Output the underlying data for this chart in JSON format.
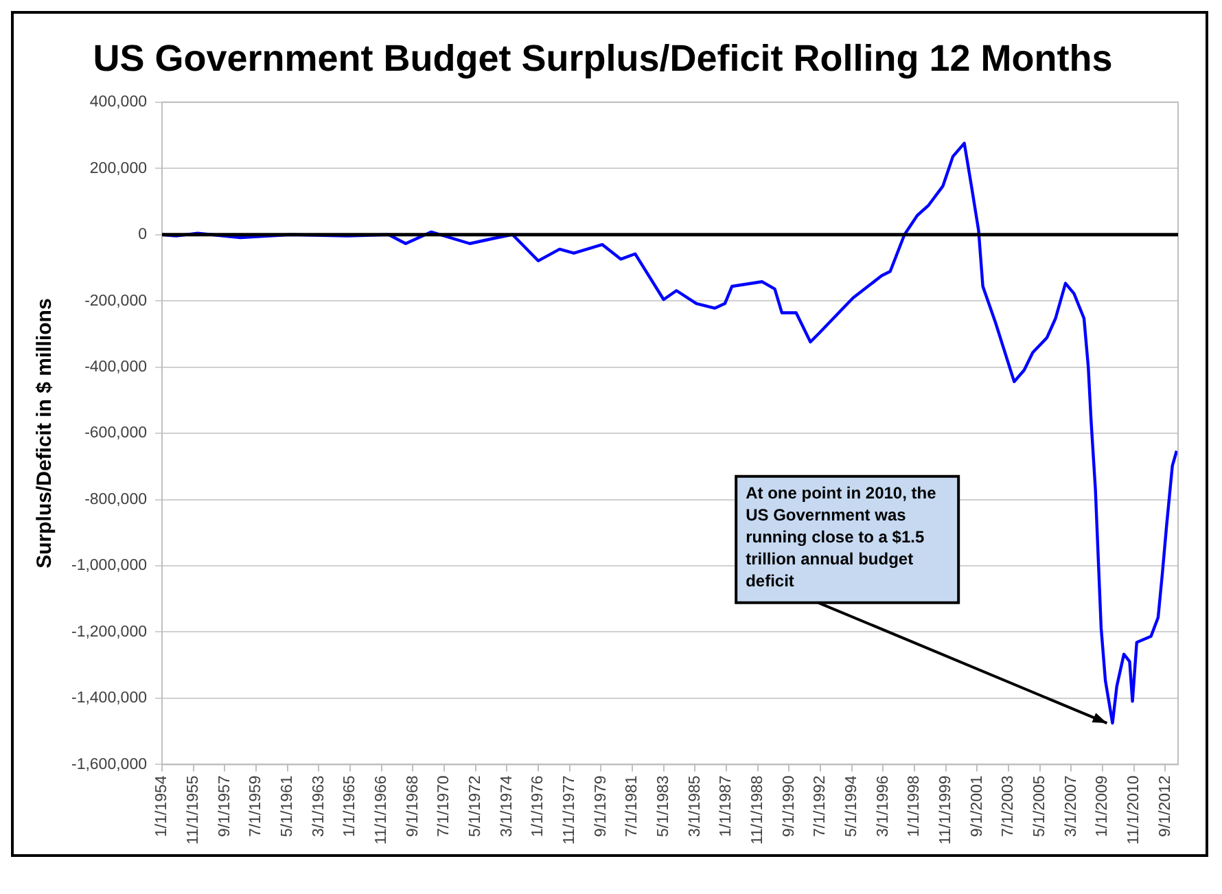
{
  "chart_data": {
    "type": "line",
    "title": "US Government Budget Surplus/Deficit Rolling 12 Months",
    "ylabel": "Surplus/Deficit in $ millions",
    "x": [
      "1954-01",
      "1954-11",
      "1956-02",
      "1958-08",
      "1961-07",
      "1964-10",
      "1967-04",
      "1968-04",
      "1969-10",
      "1972-01",
      "1973-05",
      "1974-07",
      "1976-01",
      "1977-04",
      "1978-02",
      "1979-10",
      "1980-11",
      "1981-09",
      "1983-05",
      "1984-02",
      "1985-04",
      "1986-05",
      "1986-12",
      "1987-05",
      "1989-02",
      "1989-11",
      "1990-04",
      "1991-02",
      "1991-12",
      "1992-06",
      "1993-11",
      "1994-06",
      "1996-02",
      "1996-08",
      "1997-06",
      "1998-03",
      "1998-11",
      "1999-09",
      "2000-04",
      "2000-12",
      "2001-05",
      "2001-10",
      "2002-01",
      "2002-10",
      "2003-11",
      "2004-06",
      "2004-12",
      "2005-10",
      "2006-04",
      "2006-11",
      "2007-05",
      "2007-12",
      "2008-03",
      "2008-05",
      "2008-08",
      "2008-12",
      "2009-03",
      "2009-08",
      "2009-11",
      "2010-04",
      "2010-08",
      "2010-10",
      "2011-01",
      "2011-11",
      "2012-04",
      "2012-07",
      "2012-10",
      "2013-02",
      "2013-05"
    ],
    "series": [
      {
        "color": "#0000ff",
        "values": [
          0,
          -4000,
          4000,
          -9000,
          0,
          -4000,
          0,
          -27000,
          8000,
          -27000,
          -12000,
          0,
          -79000,
          -44000,
          -56000,
          -30000,
          -74000,
          -58000,
          -196000,
          -169000,
          -208000,
          -222000,
          -208000,
          -156000,
          -142000,
          -164000,
          -236000,
          -236000,
          -324000,
          -298000,
          -222000,
          -191000,
          -124000,
          -111000,
          0,
          58000,
          89000,
          147000,
          236000,
          276000,
          147000,
          13000,
          -156000,
          -267000,
          -444000,
          -409000,
          -356000,
          -311000,
          -253000,
          -147000,
          -178000,
          -253000,
          -400000,
          -564000,
          -769000,
          -1187000,
          -1347000,
          -1475000,
          -1364000,
          -1267000,
          -1289000,
          -1409000,
          -1231000,
          -1213000,
          -1156000,
          -1022000,
          -876000,
          -698000,
          -653000
        ]
      }
    ],
    "xlim": [
      "1954-01",
      "2013-06"
    ],
    "xticks": [
      {
        "value": "1954-01",
        "label": "1/1/1954"
      },
      {
        "value": "1955-11",
        "label": "11/1/1955"
      },
      {
        "value": "1957-09",
        "label": "9/1/1957"
      },
      {
        "value": "1959-07",
        "label": "7/1/1959"
      },
      {
        "value": "1961-05",
        "label": "5/1/1961"
      },
      {
        "value": "1963-03",
        "label": "3/1/1963"
      },
      {
        "value": "1965-01",
        "label": "1/1/1965"
      },
      {
        "value": "1966-11",
        "label": "11/1/1966"
      },
      {
        "value": "1968-09",
        "label": "9/1/1968"
      },
      {
        "value": "1970-07",
        "label": "7/1/1970"
      },
      {
        "value": "1972-05",
        "label": "5/1/1972"
      },
      {
        "value": "1974-03",
        "label": "3/1/1974"
      },
      {
        "value": "1976-01",
        "label": "1/1/1976"
      },
      {
        "value": "1977-11",
        "label": "11/1/1977"
      },
      {
        "value": "1979-09",
        "label": "9/1/1979"
      },
      {
        "value": "1981-07",
        "label": "7/1/1981"
      },
      {
        "value": "1983-05",
        "label": "5/1/1983"
      },
      {
        "value": "1985-03",
        "label": "3/1/1985"
      },
      {
        "value": "1987-01",
        "label": "1/1/1987"
      },
      {
        "value": "1988-11",
        "label": "11/1/1988"
      },
      {
        "value": "1990-09",
        "label": "9/1/1990"
      },
      {
        "value": "1992-07",
        "label": "7/1/1992"
      },
      {
        "value": "1994-05",
        "label": "5/1/1994"
      },
      {
        "value": "1996-03",
        "label": "3/1/1996"
      },
      {
        "value": "1998-01",
        "label": "1/1/1998"
      },
      {
        "value": "1999-11",
        "label": "11/1/1999"
      },
      {
        "value": "2001-09",
        "label": "9/1/2001"
      },
      {
        "value": "2003-07",
        "label": "7/1/2003"
      },
      {
        "value": "2005-05",
        "label": "5/1/2005"
      },
      {
        "value": "2007-03",
        "label": "3/1/2007"
      },
      {
        "value": "2009-01",
        "label": "1/1/2009"
      },
      {
        "value": "2010-11",
        "label": "11/1/2010"
      },
      {
        "value": "2012-09",
        "label": "9/1/2012"
      }
    ],
    "ylim": [
      -1600000,
      400000
    ],
    "yticks": [
      {
        "value": -1600000,
        "label": "-1,600,000"
      },
      {
        "value": -1400000,
        "label": "-1,400,000"
      },
      {
        "value": -1200000,
        "label": "-1,200,000"
      },
      {
        "value": -1000000,
        "label": "-1,000,000"
      },
      {
        "value": -800000,
        "label": "-800,000"
      },
      {
        "value": -600000,
        "label": "-600,000"
      },
      {
        "value": -400000,
        "label": "-400,000"
      },
      {
        "value": -200000,
        "label": "-200,000"
      },
      {
        "value": 0,
        "label": "0"
      },
      {
        "value": 200000,
        "label": "200,000"
      },
      {
        "value": 400000,
        "label": "400,000"
      }
    ],
    "ref_lines": [
      {
        "axis": "y",
        "value": 0,
        "color": "#000000"
      }
    ],
    "annotations": [
      {
        "text": "At one point in 2010, the US Government was running close to a $1.5 trillion annual budget deficit",
        "x": "2009-07",
        "y": -1475000
      }
    ],
    "grid": "y",
    "legend": false,
    "marker": "none",
    "line_style": "solid"
  }
}
